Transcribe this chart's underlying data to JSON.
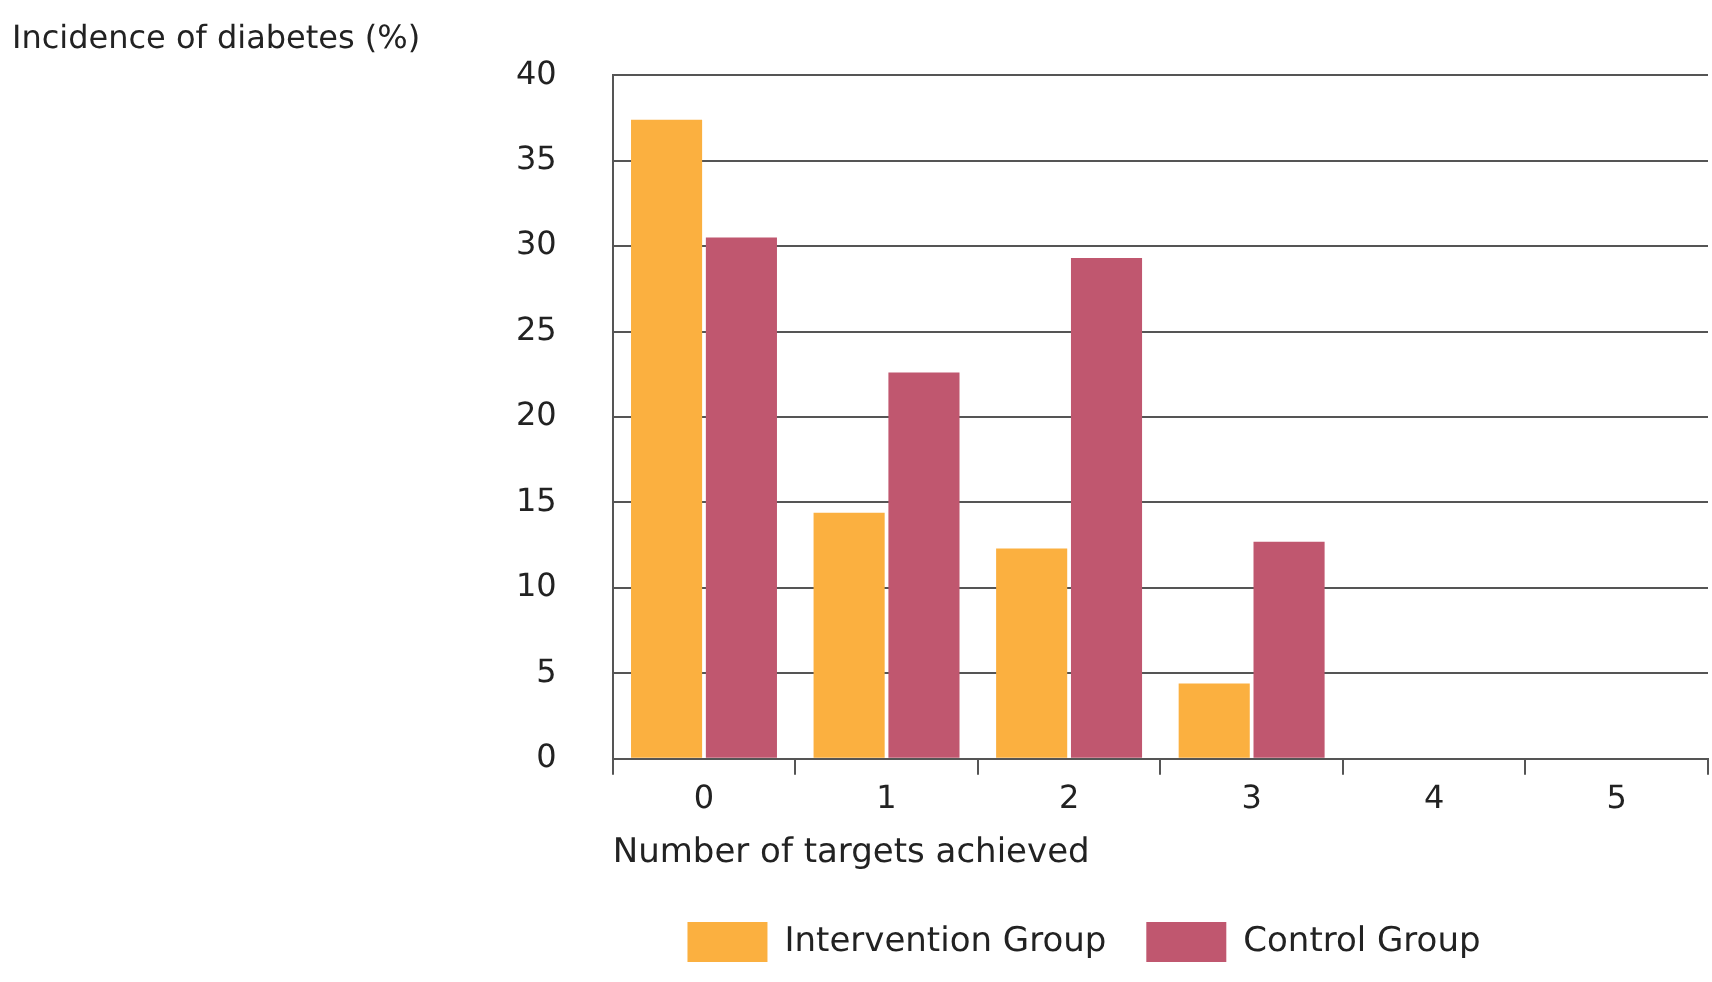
{
  "chart_data": {
    "type": "bar",
    "ylabel": "Incidence of diabetes (%)",
    "xlabel": "Number of targets achieved",
    "categories": [
      "0",
      "1",
      "2",
      "3",
      "4",
      "5"
    ],
    "series": [
      {
        "name": "Intervention Group",
        "color": "#fbb040",
        "values": [
          37.4,
          14.4,
          12.3,
          4.4,
          0,
          0
        ]
      },
      {
        "name": "Control Group",
        "color": "#c0576f",
        "values": [
          30.5,
          22.6,
          29.3,
          12.7,
          0,
          0
        ]
      }
    ],
    "ylim": [
      0,
      40
    ],
    "yticks": [
      0,
      5,
      10,
      15,
      20,
      25,
      30,
      35,
      40
    ],
    "grid": "y",
    "legend": "bottom"
  }
}
